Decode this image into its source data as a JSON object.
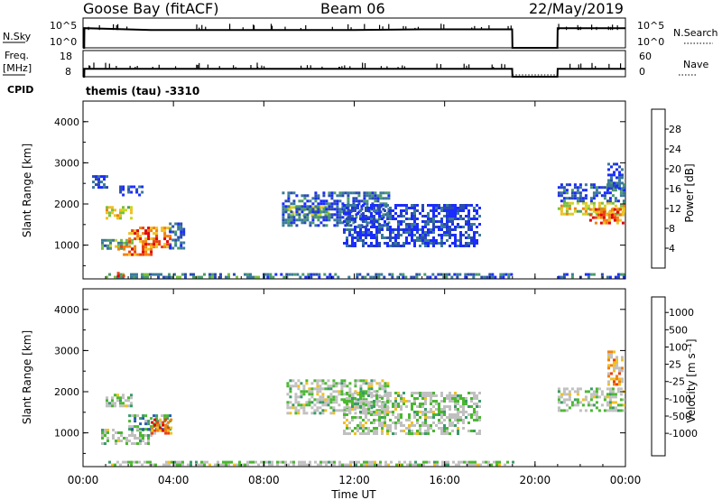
{
  "header": {
    "station": "Goose Bay (fitACF)",
    "beam": "Beam 06",
    "date": "22/May/2019",
    "program": "themis (tau) -3310"
  },
  "labels": {
    "nsky": "N.Sky",
    "nsearch": "N.Search",
    "freq": "Freq.",
    "freq_unit": "[MHz]",
    "nave": "Nave",
    "cpid": "CPID",
    "nsky_top": "10^5",
    "nsky_bot": "10^0",
    "nsearch_top": "10^5",
    "nsearch_bot": "10^0",
    "freq_top": "18",
    "freq_bot": "8",
    "nave_top": "60",
    "nave_bot": "0",
    "xlabel": "Time UT",
    "ylabel": "Slant Range [km]",
    "power_label": "Power [dB]",
    "velocity_label": "Velocity [m s⁻¹]"
  },
  "chart_data": [
    {
      "type": "heatmap",
      "name": "power",
      "xlabel": "Time UT",
      "ylabel": "Slant Range [km]",
      "xlim": [
        0,
        24
      ],
      "ylim": [
        180,
        4500
      ],
      "xticks": [
        "00:00",
        "04:00",
        "08:00",
        "12:00",
        "16:00",
        "20:00",
        "00:00"
      ],
      "yticks": [
        1000,
        2000,
        3000,
        4000
      ],
      "colorbar": {
        "label": "Power [dB]",
        "ticks": [
          "4",
          "8",
          "12",
          "16",
          "20",
          "24",
          "28"
        ],
        "colors": [
          "#1a2cff",
          "#2a4bb0",
          "#3a7a9a",
          "#4a9a6a",
          "#78c040",
          "#c8d820",
          "#f0c020",
          "#f08010",
          "#e84010",
          "#e00000"
        ]
      },
      "regions": [
        {
          "t0": 1.0,
          "t1": 2.1,
          "r0": 1650,
          "r1": 1950,
          "level": 0.55
        },
        {
          "t0": 0.4,
          "t1": 1.1,
          "r0": 2400,
          "r1": 2700,
          "level": 0.1
        },
        {
          "t0": 1.6,
          "t1": 2.6,
          "r0": 2250,
          "r1": 2450,
          "level": 0.1
        },
        {
          "t0": 0.8,
          "t1": 2.2,
          "r0": 900,
          "r1": 1150,
          "level": 0.35
        },
        {
          "t0": 1.4,
          "t1": 3.0,
          "r0": 750,
          "r1": 1000,
          "level": 0.75
        },
        {
          "t0": 2.0,
          "t1": 3.9,
          "r0": 950,
          "r1": 1450,
          "level": 0.8
        },
        {
          "t0": 3.8,
          "t1": 4.4,
          "r0": 900,
          "r1": 1550,
          "level": 0.15
        },
        {
          "t0": 1.0,
          "t1": 8.0,
          "r0": 220,
          "r1": 320,
          "level": 0.3
        },
        {
          "t0": 1.5,
          "t1": 1.8,
          "r0": 220,
          "r1": 350,
          "level": 0.95
        },
        {
          "t0": 9.0,
          "t1": 10.8,
          "r0": 1700,
          "r1": 1950,
          "level": 0.5
        },
        {
          "t0": 8.8,
          "t1": 13.5,
          "r0": 1500,
          "r1": 2300,
          "level": 0.2
        },
        {
          "t0": 11.5,
          "t1": 17.5,
          "r0": 1000,
          "r1": 2000,
          "level": 0.1
        },
        {
          "t0": 8.0,
          "t1": 19.0,
          "r0": 220,
          "r1": 320,
          "level": 0.2
        },
        {
          "t0": 21.0,
          "t1": 23.9,
          "r0": 1750,
          "r1": 2050,
          "level": 0.55
        },
        {
          "t0": 22.4,
          "t1": 23.9,
          "r0": 1550,
          "r1": 1900,
          "level": 0.8
        },
        {
          "t0": 21.0,
          "t1": 23.9,
          "r0": 2050,
          "r1": 2500,
          "level": 0.2
        },
        {
          "t0": 23.2,
          "t1": 23.9,
          "r0": 2400,
          "r1": 3000,
          "level": 0.15
        },
        {
          "t0": 21.0,
          "t1": 23.9,
          "r0": 220,
          "r1": 320,
          "level": 0.2
        }
      ]
    },
    {
      "type": "heatmap",
      "name": "velocity",
      "xlabel": "Time UT",
      "ylabel": "Slant Range [km]",
      "xlim": [
        0,
        24
      ],
      "ylim": [
        180,
        4500
      ],
      "xticks": [
        "00:00",
        "04:00",
        "08:00",
        "12:00",
        "16:00",
        "20:00",
        "00:00"
      ],
      "yticks": [
        1000,
        2000,
        3000,
        4000
      ],
      "colorbar": {
        "label": "Velocity [m s⁻¹]",
        "ticks": [
          "1000",
          "500",
          "100",
          "25",
          "-25",
          "-100",
          "-500",
          "-1000"
        ],
        "colors": [
          "#2030b0",
          "#2a5ab0",
          "#3a9a6a",
          "#4ab830",
          "#c0c0c0",
          "#c0c0c0",
          "#f0c020",
          "#f08010",
          "#e84010",
          "#e00000"
        ]
      },
      "regions": [
        {
          "t0": 1.0,
          "t1": 2.1,
          "r0": 1650,
          "r1": 1950,
          "level": 0.45
        },
        {
          "t0": 0.8,
          "t1": 3.0,
          "r0": 750,
          "r1": 1100,
          "level": 0.45
        },
        {
          "t0": 2.0,
          "t1": 3.9,
          "r0": 1100,
          "r1": 1450,
          "level": 0.3
        },
        {
          "t0": 3.0,
          "t1": 3.9,
          "r0": 1000,
          "r1": 1350,
          "level": 0.75
        },
        {
          "t0": 9.0,
          "t1": 13.5,
          "r0": 1500,
          "r1": 2300,
          "level": 0.45
        },
        {
          "t0": 11.5,
          "t1": 17.5,
          "r0": 1000,
          "r1": 2000,
          "level": 0.45
        },
        {
          "t0": 21.0,
          "t1": 23.9,
          "r0": 1550,
          "r1": 2100,
          "level": 0.45
        },
        {
          "t0": 23.2,
          "t1": 23.9,
          "r0": 2200,
          "r1": 3000,
          "level": 0.65
        },
        {
          "t0": 1.0,
          "t1": 19.0,
          "r0": 220,
          "r1": 320,
          "level": 0.45
        }
      ]
    },
    {
      "type": "line",
      "name": "nsky-nsearch",
      "x": [
        0,
        0.05,
        0.06,
        3.0,
        6.0,
        9.0,
        12.0,
        15.0,
        18.0,
        18.99,
        19.0,
        20.99,
        21.0,
        24.0
      ],
      "y": [
        0,
        0,
        3.3,
        3.0,
        3.0,
        3.0,
        3.0,
        3.1,
        3.1,
        3.1,
        0,
        0,
        3.3,
        3.3
      ],
      "ylim": [
        0,
        5
      ]
    },
    {
      "type": "line",
      "name": "freq-nave",
      "x": [
        0,
        0.05,
        0.06,
        6.0,
        12.0,
        18.99,
        19.0,
        20.99,
        21.0,
        24.0
      ],
      "y": [
        8,
        8,
        11,
        11,
        11,
        11,
        8,
        8,
        11,
        11
      ],
      "ylim": [
        8,
        18
      ]
    }
  ]
}
